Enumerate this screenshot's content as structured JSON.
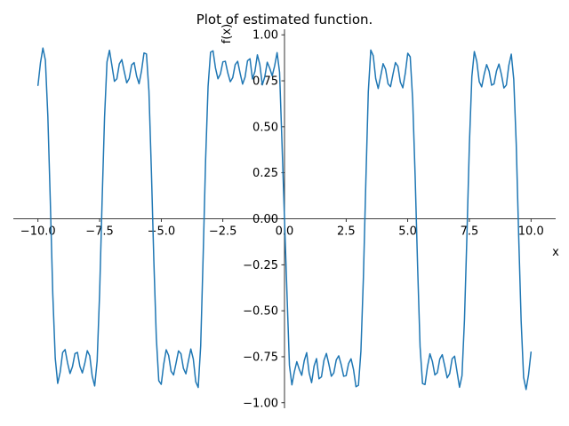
{
  "chart_data": {
    "type": "line",
    "title": "Plot of estimated function.",
    "xlabel": "x",
    "ylabel": "f(x)",
    "xlim": [
      -11,
      11
    ],
    "ylim": [
      -1.03,
      1.03
    ],
    "grid": false,
    "axes_through_origin": true,
    "x_ticks": [
      -10.0,
      -7.5,
      -5.0,
      -2.5,
      0.0,
      2.5,
      5.0,
      7.5,
      10.0
    ],
    "x_tick_labels": [
      "−10.0",
      "−7.5",
      "−5.0",
      "−2.5",
      "0.0",
      "2.5",
      "5.0",
      "7.5",
      "10.0"
    ],
    "y_ticks": [
      -1.0,
      -0.75,
      -0.5,
      -0.25,
      0.0,
      0.25,
      0.5,
      0.75,
      1.0
    ],
    "y_tick_labels": [
      "−1.00",
      "−0.75",
      "−0.50",
      "−0.25",
      "0.00",
      "0.25",
      "0.50",
      "0.75",
      "1.00"
    ],
    "series": [
      {
        "color": "#1f77b4",
        "x_range": [
          -10,
          10
        ],
        "expression": "(4/pi) * sum over odd k = 1..9 of sin(k x)/k",
        "x": [
          -10.0,
          -9.9,
          -9.8,
          -9.7,
          -9.6,
          -9.5,
          -9.4,
          -9.3,
          -9.2,
          -9.1,
          -9.0,
          -8.9,
          -8.8,
          -8.7,
          -8.6,
          -8.5,
          -8.4,
          -8.3,
          -8.2,
          -8.1,
          -8.0,
          -7.9,
          -7.8,
          -7.7,
          -7.6,
          -7.5,
          -7.4,
          -7.3,
          -7.2,
          -7.1,
          -7.0,
          -6.9,
          -6.8,
          -6.7,
          -6.6,
          -6.5,
          -6.4,
          -6.3,
          -6.2,
          -6.1,
          -6.0,
          -5.9,
          -5.8,
          -5.7,
          -5.6,
          -5.5,
          -5.4,
          -5.3,
          -5.2,
          -5.1,
          -5.0,
          -4.9,
          -4.8,
          -4.7,
          -4.6,
          -4.5,
          -4.4,
          -4.3,
          -4.2,
          -4.1,
          -4.0,
          -3.9,
          -3.8,
          -3.7,
          -3.6,
          -3.5,
          -3.4,
          -3.3,
          -3.2,
          -3.1,
          -3.0,
          -2.9,
          -2.8,
          -2.7,
          -2.6,
          -2.5,
          -2.4,
          -2.3,
          -2.2,
          -2.1,
          -2.0,
          -1.9,
          -1.8,
          -1.7,
          -1.6,
          -1.5,
          -1.4,
          -1.3,
          -1.2,
          -1.1,
          -1.0,
          -0.9,
          -0.8,
          -0.7,
          -0.6,
          -0.5,
          -0.4,
          -0.3,
          -0.2,
          -0.1,
          0.0,
          0.1,
          0.2,
          0.3,
          0.4,
          0.5,
          0.6,
          0.7,
          0.8,
          0.9,
          1.0,
          1.1,
          1.2,
          1.3,
          1.4,
          1.5,
          1.6,
          1.7,
          1.8,
          1.9,
          2.0,
          2.1,
          2.2,
          2.3,
          2.4,
          2.5,
          2.6,
          2.7,
          2.8,
          2.9,
          3.0,
          3.1,
          3.2,
          3.3,
          3.4,
          3.5,
          3.6,
          3.7,
          3.8,
          3.9,
          4.0,
          4.1,
          4.2,
          4.3,
          4.4,
          4.5,
          4.6,
          4.7,
          4.8,
          4.9,
          5.0,
          5.1,
          5.2,
          5.3,
          5.4,
          5.5,
          5.6,
          5.7,
          5.8,
          5.9,
          6.0,
          6.1,
          6.2,
          6.3,
          6.4,
          6.5,
          6.6,
          6.7,
          6.8,
          6.9,
          7.0,
          7.1,
          7.2,
          7.3,
          7.4,
          7.5,
          7.6,
          7.7,
          7.8,
          7.9,
          8.0,
          8.1,
          8.2,
          8.3,
          8.4,
          8.5,
          8.6,
          8.7,
          8.8,
          8.9,
          9.0,
          9.1,
          9.2,
          9.3,
          9.4,
          9.5,
          9.6,
          9.7,
          9.8,
          9.9,
          10.0
        ],
        "y": [
          0.725,
          0.847,
          0.928,
          0.862,
          0.557,
          0.095,
          -0.408,
          -0.758,
          -0.895,
          -0.834,
          -0.727,
          -0.711,
          -0.784,
          -0.841,
          -0.803,
          -0.733,
          -0.726,
          -0.802,
          -0.838,
          -0.785,
          -0.717,
          -0.745,
          -0.856,
          -0.909,
          -0.773,
          -0.404,
          0.092,
          0.551,
          0.853,
          0.916,
          0.832,
          0.747,
          0.761,
          0.842,
          0.865,
          0.8,
          0.739,
          0.762,
          0.837,
          0.849,
          0.776,
          0.734,
          0.804,
          0.901,
          0.896,
          0.695,
          0.262,
          -0.23,
          -0.646,
          -0.88,
          -0.9,
          -0.791,
          -0.712,
          -0.743,
          -0.829,
          -0.849,
          -0.785,
          -0.718,
          -0.734,
          -0.813,
          -0.843,
          -0.774,
          -0.708,
          -0.762,
          -0.886,
          -0.917,
          -0.691,
          -0.203,
          0.321,
          0.72,
          0.905,
          0.913,
          0.82,
          0.761,
          0.787,
          0.853,
          0.856,
          0.793,
          0.745,
          0.767,
          0.838,
          0.856,
          0.791,
          0.732,
          0.77,
          0.859,
          0.87,
          0.76,
          0.801,
          0.891,
          0.838,
          0.728,
          0.772,
          0.851,
          0.819,
          0.777,
          0.831,
          0.903,
          0.797,
          0.404,
          0.0,
          -0.404,
          -0.797,
          -0.903,
          -0.831,
          -0.777,
          -0.819,
          -0.851,
          -0.772,
          -0.728,
          -0.838,
          -0.891,
          -0.801,
          -0.76,
          -0.87,
          -0.859,
          -0.77,
          -0.732,
          -0.791,
          -0.856,
          -0.838,
          -0.767,
          -0.745,
          -0.793,
          -0.856,
          -0.853,
          -0.787,
          -0.761,
          -0.82,
          -0.913,
          -0.905,
          -0.72,
          -0.321,
          0.203,
          0.691,
          0.917,
          0.886,
          0.762,
          0.708,
          0.774,
          0.843,
          0.813,
          0.734,
          0.718,
          0.785,
          0.849,
          0.829,
          0.743,
          0.712,
          0.791,
          0.9,
          0.88,
          0.646,
          0.23,
          -0.262,
          -0.695,
          -0.896,
          -0.901,
          -0.804,
          -0.734,
          -0.776,
          -0.849,
          -0.837,
          -0.762,
          -0.739,
          -0.8,
          -0.865,
          -0.842,
          -0.761,
          -0.747,
          -0.832,
          -0.916,
          -0.853,
          -0.551,
          -0.092,
          0.404,
          0.773,
          0.909,
          0.856,
          0.745,
          0.717,
          0.785,
          0.838,
          0.802,
          0.726,
          0.733,
          0.803,
          0.841,
          0.784,
          0.711,
          0.727,
          0.834,
          0.895,
          0.758,
          0.408,
          -0.095,
          -0.557,
          -0.862,
          -0.928,
          -0.847,
          -0.725
        ]
      }
    ]
  }
}
